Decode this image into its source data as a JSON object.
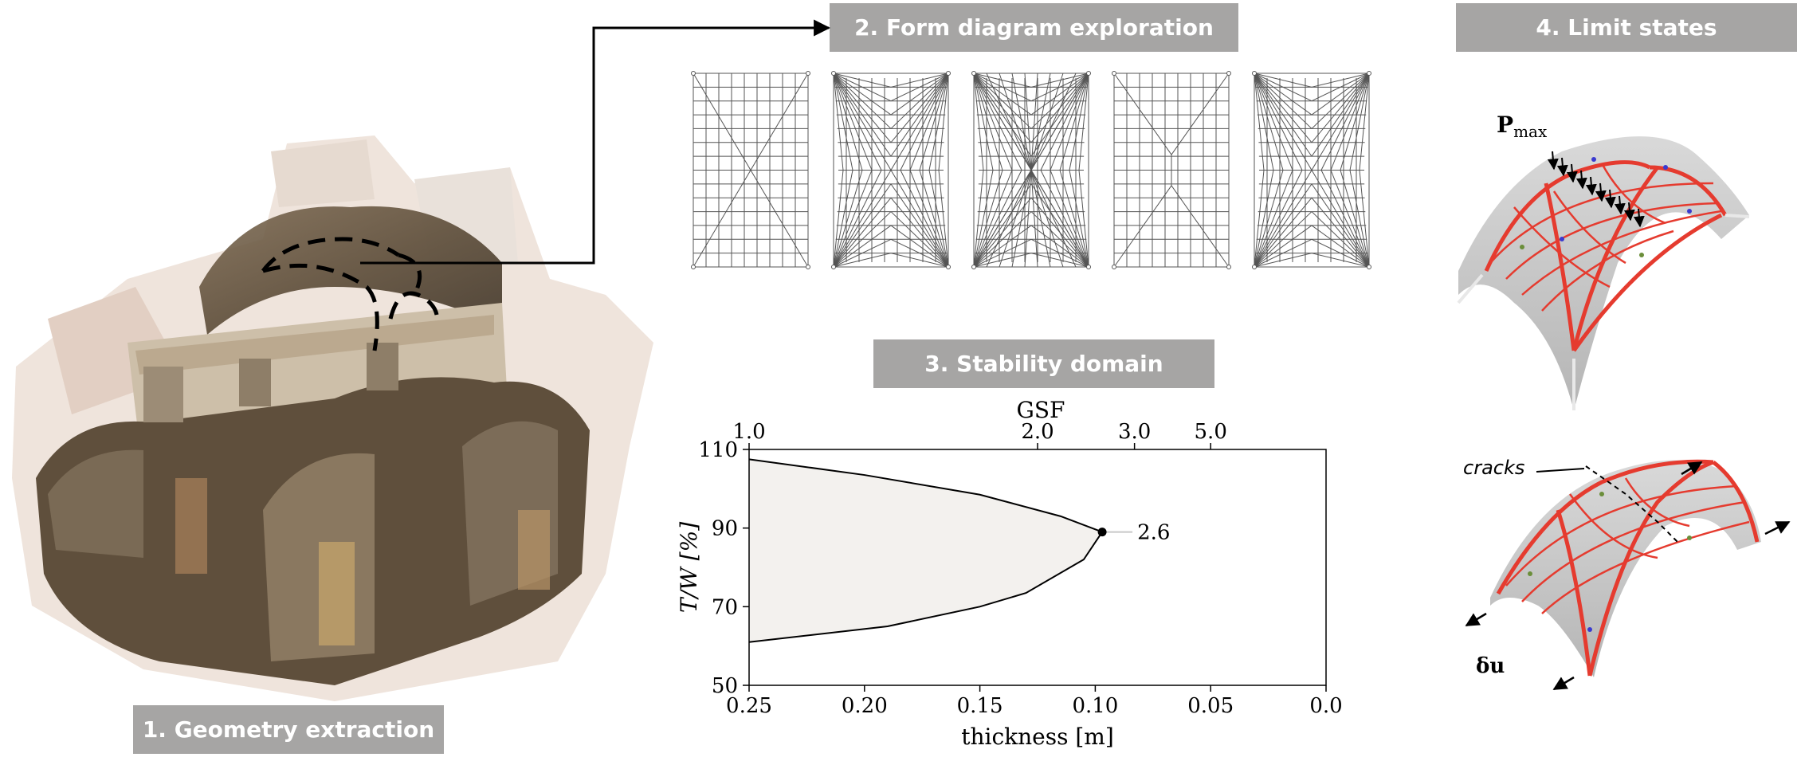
{
  "panels": {
    "geometry": {
      "label": "1. Geometry extraction"
    },
    "form": {
      "label": "2. Form diagram exploration"
    },
    "stability": {
      "label": "3. Stability domain"
    },
    "limit": {
      "label": "4. Limit states"
    }
  },
  "limit_labels": {
    "pmax_main": "P",
    "pmax_sub": "max",
    "cracks": "cracks",
    "du": "δu"
  },
  "colors": {
    "badge": "#a6a5a4",
    "domain_fill": "#f3f1ee",
    "arch_red": "#e53b2f",
    "shell_grey": "#c8c8c8"
  },
  "chart_data": {
    "type": "area",
    "title": "",
    "xlabel": "thickness [m]",
    "ylabel": "T/W [%]",
    "top_axis_label": "GSF",
    "x_reversed": true,
    "xlim": [
      0.25,
      0.0
    ],
    "ylim": [
      50,
      110
    ],
    "x_ticks": [
      "0.25",
      "0.20",
      "0.15",
      "0.10",
      "0.05",
      "0.0"
    ],
    "y_ticks": [
      "50",
      "70",
      "90",
      "110"
    ],
    "top_ticks": [
      {
        "label": "1.0",
        "thickness": 0.25
      },
      {
        "label": "2.0",
        "thickness": 0.125
      },
      {
        "label": "3.0",
        "thickness": 0.083
      },
      {
        "label": "5.0",
        "thickness": 0.05
      }
    ],
    "upper_boundary": [
      [
        0.25,
        107.5
      ],
      [
        0.2,
        103.5
      ],
      [
        0.15,
        98.5
      ],
      [
        0.115,
        93
      ],
      [
        0.097,
        89
      ]
    ],
    "lower_boundary": [
      [
        0.25,
        61
      ],
      [
        0.19,
        65
      ],
      [
        0.15,
        70
      ],
      [
        0.13,
        73.5
      ],
      [
        0.105,
        82
      ],
      [
        0.097,
        89
      ]
    ],
    "limit_point": {
      "thickness": 0.097,
      "tw": 89,
      "label": "2.6"
    }
  }
}
